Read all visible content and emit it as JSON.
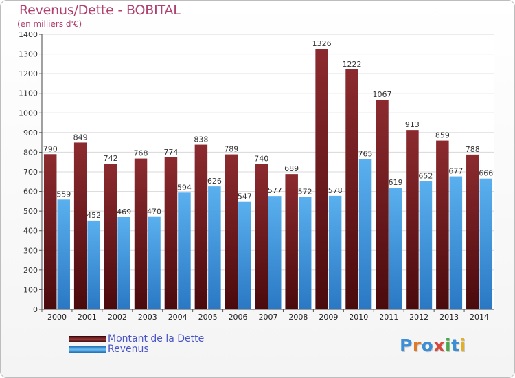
{
  "header": {
    "title": "Revenus/Dette - BOBITAL",
    "subtitle": "(en milliers d'€)"
  },
  "legend": {
    "items": [
      {
        "label": "Montant de la Dette",
        "color": "#7a1e22"
      },
      {
        "label": "Revenus",
        "color": "#3d9be0"
      }
    ]
  },
  "logo": {
    "letters": [
      "P",
      "r",
      "o",
      "x",
      "i",
      "t",
      "i"
    ],
    "colors": [
      "#3c8fd6",
      "#e07a28",
      "#3c8fd6",
      "#d64a3c",
      "#4aa84a",
      "#3c8fd6",
      "#e0b028"
    ]
  },
  "chart_data": {
    "type": "bar",
    "categories": [
      "2000",
      "2001",
      "2002",
      "2003",
      "2004",
      "2005",
      "2006",
      "2007",
      "2008",
      "2009",
      "2010",
      "2011",
      "2012",
      "2013",
      "2014"
    ],
    "series": [
      {
        "name": "Montant de la Dette",
        "color": "#7a1e22",
        "values": [
          790,
          849,
          742,
          768,
          774,
          838,
          789,
          740,
          689,
          1326,
          1222,
          1067,
          913,
          859,
          788
        ]
      },
      {
        "name": "Revenus",
        "color": "#3d9be0",
        "values": [
          559,
          452,
          469,
          470,
          594,
          626,
          547,
          577,
          572,
          578,
          765,
          619,
          652,
          677,
          666
        ]
      }
    ],
    "ylim": [
      0,
      1400
    ],
    "yticks": [
      0,
      100,
      200,
      300,
      400,
      500,
      600,
      700,
      800,
      900,
      1000,
      1100,
      1200,
      1300,
      1400
    ],
    "grid": true
  }
}
